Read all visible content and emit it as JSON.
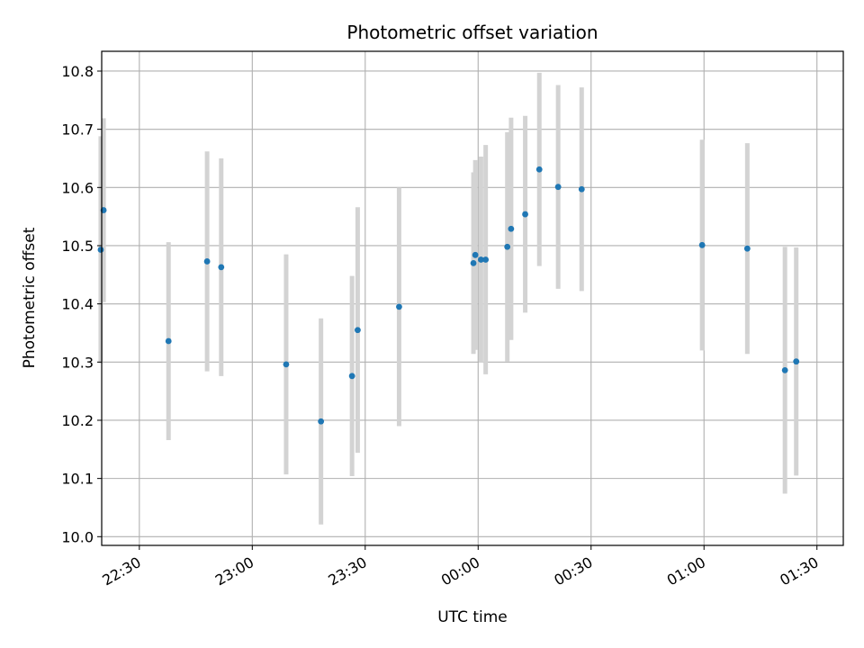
{
  "chart_data": {
    "type": "scatter",
    "title": "Photometric offset variation",
    "xlabel": "UTC time",
    "ylabel": "Photometric offset",
    "ylim": [
      9.985,
      10.834
    ],
    "xlim_minutes": [
      -100,
      97
    ],
    "grid": true,
    "x_ticks": [
      {
        "label": "22:30",
        "minutes": -90
      },
      {
        "label": "23:00",
        "minutes": -60
      },
      {
        "label": "23:30",
        "minutes": -30
      },
      {
        "label": "00:00",
        "minutes": 0
      },
      {
        "label": "00:30",
        "minutes": 30
      },
      {
        "label": "01:00",
        "minutes": 60
      },
      {
        "label": "01:30",
        "minutes": 90
      }
    ],
    "y_ticks": [
      10.0,
      10.1,
      10.2,
      10.3,
      10.4,
      10.5,
      10.6,
      10.7,
      10.8
    ],
    "marker_color": "#1f77b4",
    "errorbar_color": "#d3d3d3",
    "points": [
      {
        "time": "22:19:45",
        "minutes": -100.25,
        "y": 10.493,
        "err": 0.195
      },
      {
        "time": "22:20:30",
        "minutes": -99.5,
        "y": 10.561,
        "err": 0.158
      },
      {
        "time": "22:37:45",
        "minutes": -82.25,
        "y": 10.336,
        "err": 0.17
      },
      {
        "time": "22:48:00",
        "minutes": -72.0,
        "y": 10.473,
        "err": 0.189
      },
      {
        "time": "22:51:45",
        "minutes": -68.25,
        "y": 10.463,
        "err": 0.187
      },
      {
        "time": "23:09:00",
        "minutes": -51.0,
        "y": 10.296,
        "err": 0.189
      },
      {
        "time": "23:18:15",
        "minutes": -41.75,
        "y": 10.198,
        "err": 0.177
      },
      {
        "time": "23:26:30",
        "minutes": -33.5,
        "y": 10.276,
        "err": 0.172
      },
      {
        "time": "23:28:00",
        "minutes": -32.0,
        "y": 10.355,
        "err": 0.211
      },
      {
        "time": "23:39:00",
        "minutes": -21.0,
        "y": 10.395,
        "err": 0.205
      },
      {
        "time": "23:58:45",
        "minutes": -1.25,
        "y": 10.47,
        "err": 0.156
      },
      {
        "time": "23:59:15",
        "minutes": -0.75,
        "y": 10.484,
        "err": 0.163
      },
      {
        "time": "00:00:45",
        "minutes": 0.75,
        "y": 10.476,
        "err": 0.177
      },
      {
        "time": "00:02:00",
        "minutes": 2.0,
        "y": 10.476,
        "err": 0.197
      },
      {
        "time": "00:07:45",
        "minutes": 7.75,
        "y": 10.498,
        "err": 0.197
      },
      {
        "time": "00:08:45",
        "minutes": 8.75,
        "y": 10.529,
        "err": 0.191
      },
      {
        "time": "00:12:30",
        "minutes": 12.5,
        "y": 10.554,
        "err": 0.169
      },
      {
        "time": "00:16:15",
        "minutes": 16.25,
        "y": 10.631,
        "err": 0.166
      },
      {
        "time": "00:21:15",
        "minutes": 21.25,
        "y": 10.601,
        "err": 0.175
      },
      {
        "time": "00:27:30",
        "minutes": 27.5,
        "y": 10.597,
        "err": 0.175
      },
      {
        "time": "00:59:30",
        "minutes": 59.5,
        "y": 10.501,
        "err": 0.181
      },
      {
        "time": "01:11:30",
        "minutes": 71.5,
        "y": 10.495,
        "err": 0.181
      },
      {
        "time": "01:21:30",
        "minutes": 81.5,
        "y": 10.286,
        "err": 0.212
      },
      {
        "time": "01:24:30",
        "minutes": 84.5,
        "y": 10.301,
        "err": 0.196
      }
    ]
  }
}
